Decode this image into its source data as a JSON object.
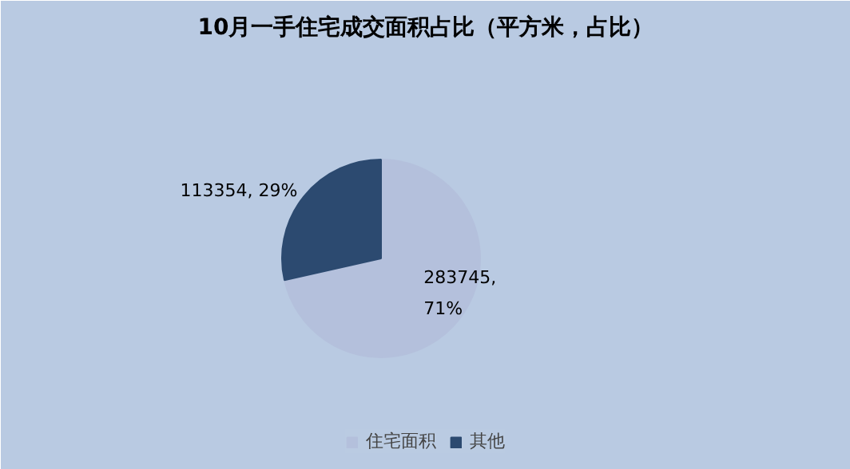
{
  "chart_data": {
    "type": "pie",
    "title": "10月一手住宅成交面积占比（平方米，占比）",
    "categories": [
      "住宅面积",
      "其他"
    ],
    "values": [
      283745,
      113354
    ],
    "colors": [
      "#b4c0dc",
      "#2c4a70"
    ],
    "value_labels": [
      "283745,\n71%",
      "113354, 29%"
    ],
    "legend": "bottom"
  }
}
